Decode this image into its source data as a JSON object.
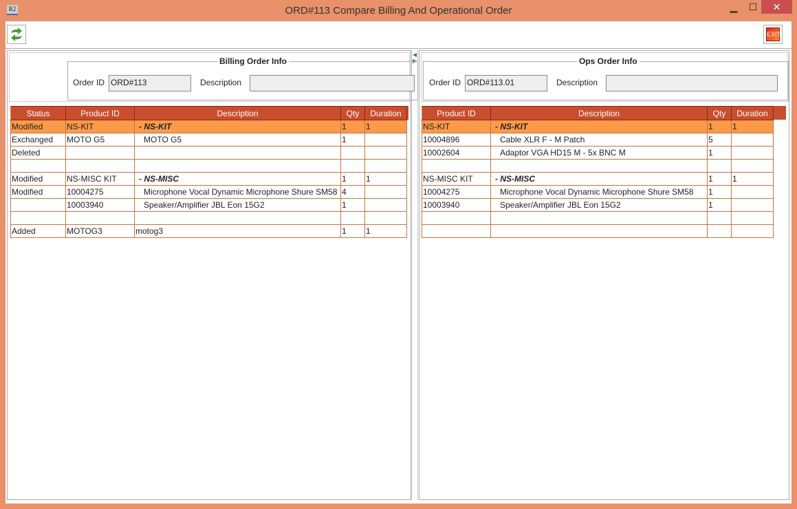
{
  "window": {
    "title": "ORD#113 Compare Billing And Operational Order",
    "app_icon": "R2",
    "minimize": "▁",
    "maximize": "☐",
    "close": "✕"
  },
  "toolbar": {
    "refresh_icon": "refresh-icon",
    "exit_label": "EXIT"
  },
  "billing": {
    "group_title": "Billing Order Info",
    "order_id_label": "Order ID",
    "order_id": "ORD#113",
    "description_label": "Description",
    "description": "",
    "columns": [
      "Status",
      "Product ID",
      "Description",
      "Qty",
      "Duration"
    ],
    "rows": [
      {
        "status": "Modified",
        "product_id": "NS-KIT",
        "description": "-  NS-KIT",
        "qty": "1",
        "duration": "1",
        "kit": true,
        "selected": true
      },
      {
        "status": "Exchanged",
        "product_id": "MOTO G5",
        "description": "MOTO G5",
        "qty": "1",
        "duration": ""
      },
      {
        "status": "Deleted",
        "product_id": "",
        "description": "",
        "qty": "",
        "duration": ""
      },
      {
        "status": "",
        "product_id": "",
        "description": "",
        "qty": "",
        "duration": ""
      },
      {
        "status": "Modified",
        "product_id": "NS-MISC KIT",
        "description": "-  NS-MISC",
        "qty": "1",
        "duration": "1",
        "kit": true
      },
      {
        "status": "Modified",
        "product_id": "10004275",
        "description": "Microphone Vocal Dynamic Microphone Shure SM58",
        "qty": "4",
        "duration": ""
      },
      {
        "status": "",
        "product_id": "10003940",
        "description": "Speaker/Amplifier JBL Eon 15G2",
        "qty": "1",
        "duration": ""
      },
      {
        "status": "",
        "product_id": "",
        "description": "",
        "qty": "",
        "duration": ""
      },
      {
        "status": "Added",
        "product_id": "MOTOG3",
        "description": "motog3",
        "qty": "1",
        "duration": "1",
        "plain": true
      }
    ]
  },
  "ops": {
    "group_title": "Ops Order Info",
    "order_id_label": "Order ID",
    "order_id": "ORD#113.01",
    "description_label": "Description",
    "description": "",
    "columns": [
      "Product ID",
      "Description",
      "Qty",
      "Duration"
    ],
    "rows": [
      {
        "product_id": "NS-KIT",
        "description": "-  NS-KIT",
        "qty": "1",
        "duration": "1",
        "kit": true,
        "selected": true
      },
      {
        "product_id": "10004896",
        "description": "Cable XLR F - M Patch",
        "qty": "5",
        "duration": ""
      },
      {
        "product_id": "10002604",
        "description": "Adaptor VGA HD15 M - 5x BNC M",
        "qty": "1",
        "duration": ""
      },
      {
        "product_id": "",
        "description": "",
        "qty": "",
        "duration": ""
      },
      {
        "product_id": "NS-MISC KIT",
        "description": "-  NS-MISC",
        "qty": "1",
        "duration": "1",
        "kit": true
      },
      {
        "product_id": "10004275",
        "description": "Microphone Vocal Dynamic Microphone Shure SM58",
        "qty": "1",
        "duration": ""
      },
      {
        "product_id": "10003940",
        "description": "Speaker/Amplifier JBL Eon 15G2",
        "qty": "1",
        "duration": ""
      },
      {
        "product_id": "",
        "description": "",
        "qty": "",
        "duration": ""
      },
      {
        "product_id": "",
        "description": "",
        "qty": "",
        "duration": ""
      }
    ]
  }
}
